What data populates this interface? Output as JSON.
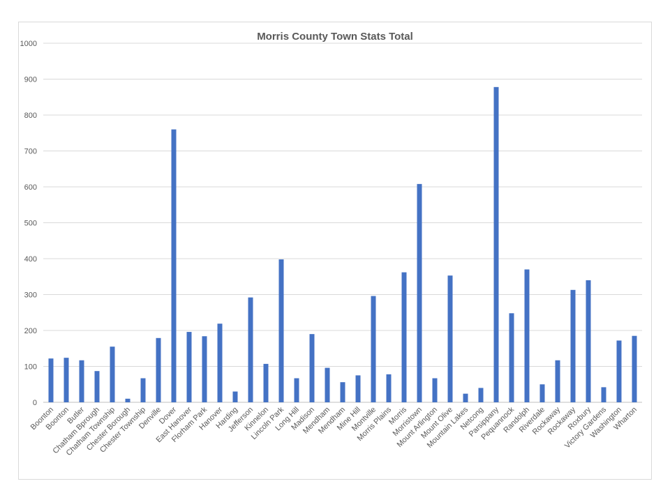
{
  "chart_data": {
    "type": "bar",
    "title": "Morris County Town Stats Total",
    "xlabel": "",
    "ylabel": "",
    "ylim": [
      0,
      1000
    ],
    "yticks": [
      0,
      100,
      200,
      300,
      400,
      500,
      600,
      700,
      800,
      900,
      1000
    ],
    "grid": true,
    "legend": "none",
    "bar_color": "#4472C4",
    "categories": [
      "Boonton",
      "Boonton",
      "Butler",
      "Chatham Bprough",
      "Chatham Township",
      "Chester Borough",
      "Chester Township",
      "Denville",
      "Dover",
      "East Hanover",
      "Florham Park",
      "Hanover",
      "Harding",
      "Jefferson",
      "Kinnelon",
      "Lincoln Park",
      "Long Hill",
      "Madison",
      "Mendham",
      "Mendham",
      "Mine Hill",
      "Montville",
      "Morris Plains",
      "Morris",
      "Morristown",
      "Mount Arlington",
      "Mount Olive",
      "Mountain Lakes",
      "Netcong",
      "Parsippany",
      "Pequannock",
      "Randolph",
      "Riverdale",
      "Rockaway",
      "Rockaway",
      "Roxbury",
      "Victory Gardens",
      "Washington",
      "Wharton"
    ],
    "values": [
      122,
      124,
      117,
      87,
      155,
      10,
      67,
      179,
      760,
      196,
      184,
      219,
      30,
      292,
      107,
      398,
      67,
      190,
      96,
      56,
      75,
      296,
      78,
      362,
      608,
      67,
      353,
      24,
      40,
      878,
      248,
      370,
      50,
      117,
      313,
      340,
      42,
      172,
      185
    ]
  }
}
